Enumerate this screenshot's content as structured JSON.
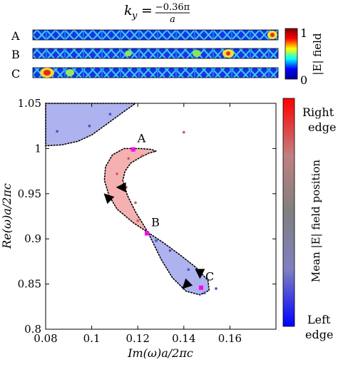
{
  "header": {
    "title": "k_y = −0.36π / a",
    "title_lhs": "k",
    "title_sub": "y",
    "title_num": "−0.36π",
    "title_den": "a"
  },
  "field_panel": {
    "rows": [
      {
        "label": "A"
      },
      {
        "label": "B"
      },
      {
        "label": "C"
      }
    ],
    "colorbar": {
      "min_label": "0",
      "max_label": "1",
      "title": "|E| field",
      "colors": [
        "#00008f",
        "#0000ff",
        "#00ffff",
        "#ffff00",
        "#ff0000",
        "#800000"
      ]
    }
  },
  "chart_data": {
    "type": "scatter",
    "xlabel": "Im(ω)a/2πc",
    "ylabel": "Re(ω)a/2πc",
    "xlim": [
      0.08,
      0.18
    ],
    "ylim": [
      0.8,
      1.05
    ],
    "x_ticks": [
      "0.08",
      "0.1",
      "0.12",
      "0.14",
      "0.16"
    ],
    "y_ticks": [
      "0.8",
      "0.85",
      "0.9",
      "0.95",
      "1",
      "1.05"
    ],
    "grid": false,
    "regions": [
      {
        "fill": "#aeb2ee",
        "boundary": [
          [
            0.08,
            1.05
          ],
          [
            0.119,
            1.05
          ],
          [
            0.1135,
            1.04
          ],
          [
            0.106,
            1.026
          ],
          [
            0.1,
            1.015
          ],
          [
            0.094,
            1.008
          ],
          [
            0.087,
            1.004
          ],
          [
            0.08,
            1.003
          ]
        ]
      },
      {
        "fill": "#f5b1b1",
        "boundary": [
          [
            0.1245,
            0.907
          ],
          [
            0.118,
            0.918
          ],
          [
            0.111,
            0.933
          ],
          [
            0.1075,
            0.948
          ],
          [
            0.1055,
            0.965
          ],
          [
            0.106,
            0.98
          ],
          [
            0.109,
            0.993
          ],
          [
            0.114,
            1.0
          ],
          [
            0.121,
            1.0
          ],
          [
            0.126,
            0.999
          ],
          [
            0.128,
            0.997
          ],
          [
            0.125,
            0.995
          ],
          [
            0.121,
            0.99
          ],
          [
            0.117,
            0.984
          ],
          [
            0.1145,
            0.975
          ],
          [
            0.1135,
            0.965
          ],
          [
            0.1155,
            0.948
          ],
          [
            0.119,
            0.93
          ],
          [
            0.1245,
            0.907
          ]
        ]
      },
      {
        "fill": "#aeb2ee",
        "boundary": [
          [
            0.1245,
            0.907
          ],
          [
            0.131,
            0.896
          ],
          [
            0.138,
            0.883
          ],
          [
            0.145,
            0.869
          ],
          [
            0.1505,
            0.854
          ],
          [
            0.151,
            0.843
          ],
          [
            0.147,
            0.838
          ],
          [
            0.141,
            0.842
          ],
          [
            0.135,
            0.857
          ],
          [
            0.13,
            0.878
          ],
          [
            0.1245,
            0.907
          ]
        ]
      }
    ],
    "points": [
      {
        "x": 0.085,
        "y": 1.019,
        "color": "#4a4ec0"
      },
      {
        "x": 0.099,
        "y": 1.025,
        "color": "#4a4ec0"
      },
      {
        "x": 0.108,
        "y": 1.038,
        "color": "#4a4ec0"
      },
      {
        "x": 0.14,
        "y": 1.018,
        "color": "#c45a5a"
      },
      {
        "x": 0.116,
        "y": 0.989,
        "color": "#c45a5a"
      },
      {
        "x": 0.122,
        "y": 0.992,
        "color": "#c45a5a"
      },
      {
        "x": 0.111,
        "y": 0.972,
        "color": "#c45a5a"
      },
      {
        "x": 0.115,
        "y": 0.957,
        "color": "#c45a5a"
      },
      {
        "x": 0.119,
        "y": 0.94,
        "color": "#c45a5a"
      },
      {
        "x": 0.12,
        "y": 0.92,
        "color": "#c45a5a"
      },
      {
        "x": 0.128,
        "y": 0.898,
        "color": "#4a4ec0"
      },
      {
        "x": 0.134,
        "y": 0.887,
        "color": "#4a4ec0"
      },
      {
        "x": 0.142,
        "y": 0.866,
        "color": "#4a4ec0"
      },
      {
        "x": 0.149,
        "y": 0.84,
        "color": "#4a4ec0"
      },
      {
        "x": 0.154,
        "y": 0.845,
        "color": "#4a4ec0"
      }
    ],
    "highlighted": [
      {
        "label": "A",
        "x": 0.118,
        "y": 0.999,
        "color": "#ff00ff"
      },
      {
        "label": "B",
        "x": 0.124,
        "y": 0.906,
        "color": "#ff00ff"
      },
      {
        "label": "C",
        "x": 0.1475,
        "y": 0.846,
        "color": "#ff00ff"
      }
    ],
    "arrows": [
      {
        "x": 0.113,
        "y": 0.957,
        "direction": "left"
      },
      {
        "x": 0.107,
        "y": 0.946,
        "direction": "up-left"
      },
      {
        "x": 0.147,
        "y": 0.862,
        "direction": "down"
      },
      {
        "x": 0.141,
        "y": 0.849,
        "direction": "down-left"
      }
    ]
  },
  "colorbar_main": {
    "top_label_line1": "Right",
    "top_label_line2": "edge",
    "bottom_label_line1": "Left",
    "bottom_label_line2": "edge",
    "title": "Mean |E| field position",
    "colors": [
      "#0000ff",
      "#8080c0",
      "#808080",
      "#c08080",
      "#ff0000"
    ]
  }
}
